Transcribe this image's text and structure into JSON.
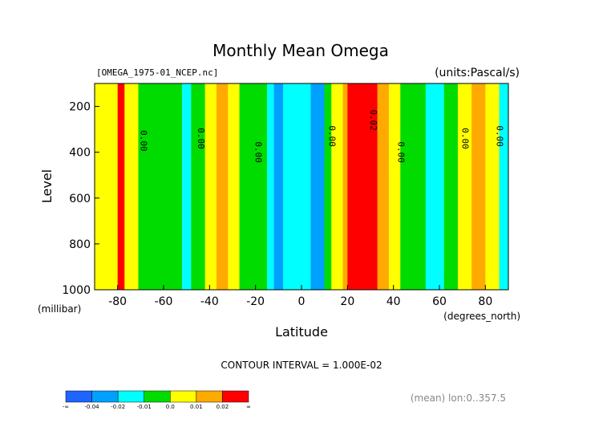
{
  "chart_data": {
    "type": "heatmap",
    "title": "Monthly Mean Omega",
    "file_label": "[OMEGA_1975-01_NCEP.nc]",
    "units_label": "(units:Pascal/s)",
    "xlabel": "Latitude",
    "x_units": "(degrees_north)",
    "ylabel": "Level",
    "y_units": "(millibar)",
    "x_range": [
      -90,
      90
    ],
    "y_range": [
      1000,
      100
    ],
    "x_ticks": [
      -80,
      -60,
      -40,
      -20,
      0,
      20,
      40,
      60,
      80
    ],
    "x_tick_labels": [
      "-80",
      "-60",
      "-40",
      "-20",
      "0",
      "20",
      "40",
      "60",
      "80"
    ],
    "y_ticks": [
      200,
      400,
      600,
      800,
      1000
    ],
    "y_tick_labels": [
      "200",
      "400",
      "600",
      "800",
      "1000"
    ],
    "contour_interval_text": "CONTOUR INTERVAL = 1.000E-02",
    "mean_text": "(mean) lon:0..357.5",
    "contour_labels": [
      {
        "text": "0.00",
        "lat": -70,
        "level": 350
      },
      {
        "text": "0.00",
        "lat": -45,
        "level": 340
      },
      {
        "text": "0.00",
        "lat": -20,
        "level": 400
      },
      {
        "text": "0.00",
        "lat": 12,
        "level": 330
      },
      {
        "text": "0.02",
        "lat": 30,
        "level": 260
      },
      {
        "text": "0.00",
        "lat": 42,
        "level": 400
      },
      {
        "text": "0.00",
        "lat": 70,
        "level": 340
      },
      {
        "text": "0.00",
        "lat": 85,
        "level": 330
      }
    ],
    "levels": [
      "-∞",
      "-0.04",
      "-0.02",
      "-0.01",
      "0.0",
      "0.01",
      "0.02",
      "∞"
    ],
    "colors": [
      "#1e64ff",
      "#00a0ff",
      "#00ffff",
      "#00dc00",
      "#ffff00",
      "#ffaa00",
      "#ff0000"
    ],
    "colorbar_levels": [
      "-∞",
      "-0.04",
      "-0.02",
      "-0.01",
      "0.0",
      "0.01",
      "0.02",
      "∞"
    ],
    "colorbar_colors": [
      "#1e64ff",
      "#00a0ff",
      "#00ffff",
      "#00dc00",
      "#ffff00",
      "#ffaa00",
      "#ff0000"
    ],
    "columns": [
      {
        "lat_range": [
          -90,
          -88
        ],
        "value": 0.005
      },
      {
        "lat_range": [
          -88,
          -80
        ],
        "value": 0.005
      },
      {
        "lat_range": [
          -80,
          -77
        ],
        "value": 0.02
      },
      {
        "lat_range": [
          -77,
          -71
        ],
        "value": 0.005
      },
      {
        "lat_range": [
          -71,
          -58
        ],
        "value": -0.005
      },
      {
        "lat_range": [
          -58,
          -52
        ],
        "value": -0.005
      },
      {
        "lat_range": [
          -52,
          -48
        ],
        "value": -0.015
      },
      {
        "lat_range": [
          -48,
          -42
        ],
        "value": -0.005
      },
      {
        "lat_range": [
          -42,
          -37
        ],
        "value": 0.005
      },
      {
        "lat_range": [
          -37,
          -32
        ],
        "value": 0.015
      },
      {
        "lat_range": [
          -32,
          -27
        ],
        "value": 0.005
      },
      {
        "lat_range": [
          -27,
          -15
        ],
        "value": -0.005
      },
      {
        "lat_range": [
          -15,
          -12
        ],
        "value": -0.015
      },
      {
        "lat_range": [
          -12,
          -8
        ],
        "value": -0.03
      },
      {
        "lat_range": [
          -8,
          4
        ],
        "value": -0.015
      },
      {
        "lat_range": [
          4,
          10
        ],
        "value": -0.03
      },
      {
        "lat_range": [
          10,
          13
        ],
        "value": -0.005
      },
      {
        "lat_range": [
          13,
          18
        ],
        "value": 0.005
      },
      {
        "lat_range": [
          18,
          20
        ],
        "value": 0.015
      },
      {
        "lat_range": [
          20,
          33
        ],
        "value": 0.03
      },
      {
        "lat_range": [
          33,
          38
        ],
        "value": 0.015
      },
      {
        "lat_range": [
          38,
          43
        ],
        "value": 0.005
      },
      {
        "lat_range": [
          43,
          54
        ],
        "value": -0.005
      },
      {
        "lat_range": [
          54,
          62
        ],
        "value": -0.015
      },
      {
        "lat_range": [
          62,
          68
        ],
        "value": -0.005
      },
      {
        "lat_range": [
          68,
          74
        ],
        "value": 0.005
      },
      {
        "lat_range": [
          74,
          80
        ],
        "value": 0.015
      },
      {
        "lat_range": [
          80,
          86
        ],
        "value": 0.005
      },
      {
        "lat_range": [
          86,
          90
        ],
        "value": -0.015
      }
    ],
    "grid": false,
    "legend_placement": "bottom-left"
  }
}
